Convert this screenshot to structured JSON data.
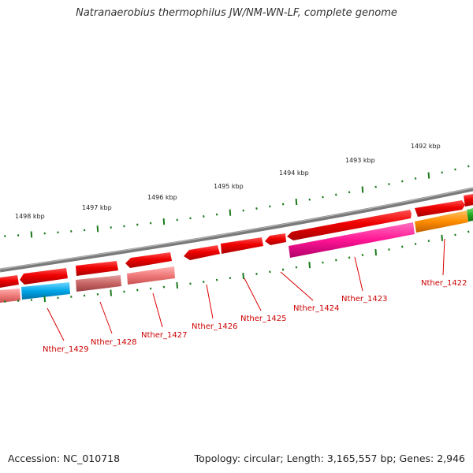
{
  "title": "Natranaerobius thermophilus JW/NM-WN-LF, complete genome",
  "accession": "Accession: NC_010718",
  "topology": "Topology: circular; Length: 3,165,557 bp; Genes: 2,946",
  "scale_labels": [
    "1498 kbp",
    "1497 kbp",
    "1496 kbp",
    "1495 kbp",
    "1494 kbp",
    "1493 kbp",
    "1492 kbp"
  ],
  "gene_labels": [
    "Nther_1429",
    "Nther_1428",
    "Nther_1427",
    "Nther_1426",
    "Nther_1425",
    "Nther_1424",
    "Nther_1423",
    "Nther_1422"
  ],
  "colors": {
    "backbone": "#7a7a7a",
    "gene_red": "#e8000b",
    "scale_tick": "#1a7a1a",
    "label_red": "#cc0000",
    "cog_colors": [
      "#f08080",
      "#00a6e8",
      "#c86464",
      "#ff1493",
      "#ff8c00",
      "#22aa22"
    ]
  }
}
